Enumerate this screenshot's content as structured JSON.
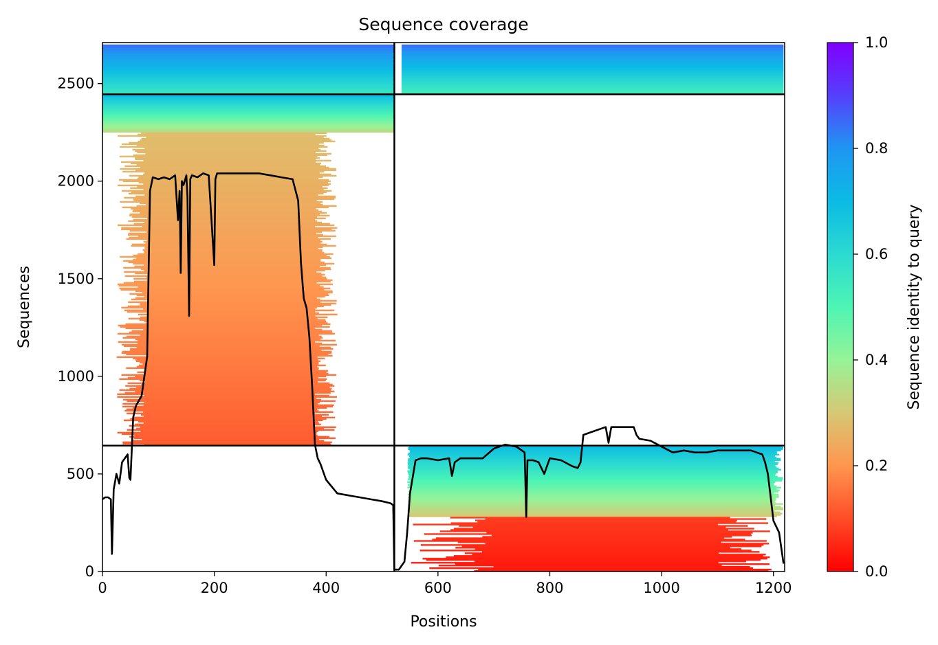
{
  "chart_data": {
    "type": "heatmap",
    "title": "Sequence coverage",
    "xlabel": "Positions",
    "ylabel": "Sequences",
    "xlim": [
      0,
      1220
    ],
    "ylim": [
      0,
      2710
    ],
    "xticks": [
      "0",
      "200",
      "400",
      "600",
      "800",
      "1000",
      "1200"
    ],
    "yticks": [
      "0",
      "500",
      "1000",
      "1500",
      "2000",
      "2500"
    ],
    "colorbar": {
      "label": "Sequence identity to query",
      "range": [
        0,
        1
      ],
      "ticks": [
        "0.0",
        "0.2",
        "0.4",
        "0.6",
        "0.8",
        "1.0"
      ],
      "colormap": "rainbow"
    },
    "chain_boundaries_x": [
      522
    ],
    "chain_boundaries_y": [
      645,
      2445
    ],
    "blocks": [
      {
        "name": "chain1-group1",
        "x": [
          0,
          522
        ],
        "y": [
          2445,
          2700
        ],
        "identity_bottom": 0.55,
        "identity_top": 0.85,
        "fill_start": 0,
        "fill_end": 520
      },
      {
        "name": "chain2-group1",
        "x": [
          535,
          1218
        ],
        "y": [
          2445,
          2700
        ],
        "identity_bottom": 0.52,
        "identity_top": 0.85,
        "fill_start": 535,
        "fill_end": 1218
      },
      {
        "name": "chain1-group2-top",
        "x": [
          0,
          522
        ],
        "y": [
          2250,
          2445
        ],
        "identity_bottom": 0.34,
        "identity_top": 0.7,
        "fill_start": 0,
        "fill_end": 520
      },
      {
        "name": "chain1-group2-bulk",
        "x": [
          25,
          420
        ],
        "y": [
          645,
          2250
        ],
        "identity_bottom": 0.12,
        "identity_top": 0.28,
        "fill_start": 80,
        "fill_end": 380
      },
      {
        "name": "chain2-group3",
        "x": [
          545,
          1218
        ],
        "y": [
          280,
          645
        ],
        "identity_bottom": 0.3,
        "identity_top": 0.7,
        "fill_start": 550,
        "fill_end": 1200
      },
      {
        "name": "chain2-group3-low",
        "x": [
          550,
          1200
        ],
        "y": [
          0,
          280
        ],
        "identity_bottom": 0.03,
        "identity_top": 0.08,
        "fill_start": 700,
        "fill_end": 1100
      }
    ],
    "coverage_line": {
      "name": "coverage",
      "color": "#000000",
      "x": [
        0,
        5,
        10,
        15,
        17,
        20,
        25,
        30,
        35,
        40,
        45,
        48,
        50,
        55,
        60,
        70,
        80,
        85,
        90,
        100,
        110,
        120,
        130,
        135,
        138,
        140,
        142,
        145,
        150,
        152,
        155,
        157,
        160,
        170,
        180,
        190,
        200,
        202,
        205,
        210,
        220,
        240,
        260,
        280,
        300,
        320,
        340,
        350,
        355,
        360,
        365,
        370,
        375,
        380,
        385,
        390,
        400,
        420,
        440,
        460,
        480,
        500,
        515,
        520,
        522,
        530,
        540,
        545,
        550,
        560,
        570,
        580,
        600,
        620,
        625,
        630,
        640,
        660,
        680,
        700,
        720,
        740,
        750,
        755,
        758,
        760,
        770,
        780,
        790,
        800,
        820,
        840,
        850,
        855,
        860,
        880,
        900,
        905,
        910,
        930,
        950,
        955,
        960,
        980,
        1000,
        1020,
        1040,
        1060,
        1080,
        1100,
        1120,
        1140,
        1160,
        1170,
        1180,
        1185,
        1190,
        1195,
        1200,
        1210,
        1218
      ],
      "y": [
        370,
        380,
        380,
        370,
        90,
        420,
        500,
        450,
        560,
        580,
        600,
        480,
        470,
        790,
        850,
        900,
        1100,
        1950,
        2020,
        2010,
        2020,
        2010,
        2030,
        1800,
        1950,
        1530,
        2000,
        1980,
        2030,
        1920,
        1310,
        2010,
        2030,
        2020,
        2040,
        2030,
        1570,
        2010,
        2040,
        2040,
        2040,
        2040,
        2040,
        2040,
        2030,
        2020,
        2010,
        1900,
        1580,
        1400,
        1350,
        1200,
        950,
        650,
        580,
        550,
        470,
        400,
        390,
        380,
        370,
        360,
        350,
        340,
        10,
        10,
        50,
        200,
        400,
        570,
        580,
        580,
        570,
        580,
        490,
        560,
        580,
        580,
        580,
        630,
        650,
        640,
        620,
        610,
        280,
        570,
        570,
        560,
        500,
        580,
        570,
        540,
        530,
        560,
        700,
        720,
        740,
        660,
        740,
        740,
        740,
        700,
        680,
        670,
        640,
        610,
        620,
        610,
        610,
        620,
        620,
        620,
        620,
        610,
        600,
        560,
        500,
        380,
        260,
        200,
        40
      ]
    }
  }
}
